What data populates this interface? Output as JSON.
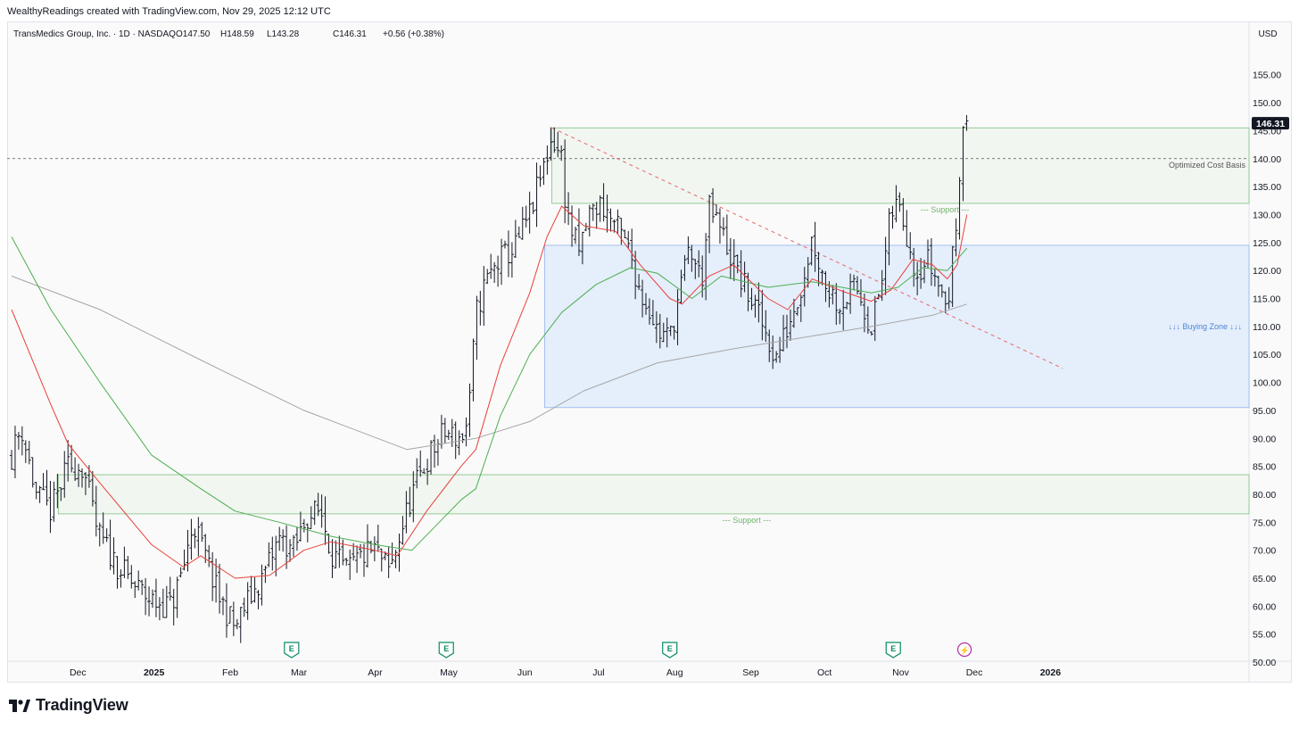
{
  "credit": "WealthyReadings created with TradingView.com, Nov 29, 2025 12:12 UTC",
  "brand": "TradingView",
  "colors": {
    "bar": "#131722",
    "ema_fast": "#e8413b",
    "ema_mid": "#4caf50",
    "ma_long": "#a6a6a6",
    "support_fill": "#eef4ee",
    "support_border": "#7fc17f",
    "buy_zone_fill": "#e5eefb",
    "buy_zone_border": "#90b4ea",
    "trendline": "#e66a6a",
    "earnings": "#0b8a65",
    "last_price_bg": "#131722"
  },
  "chart_data": {
    "type": "ohlc",
    "title": "TransMedics Group, Inc. · 1D · NASDAQ",
    "ohlc_header": {
      "open": "O147.50",
      "high": "H148.59",
      "low": "L143.28",
      "close": "C146.31",
      "change": "+0.56 (+0.38%)"
    },
    "currency": "USD",
    "last_price_label": "146.31",
    "y_ticks": [
      "155.00",
      "150.00",
      "145.00",
      "140.00",
      "135.00",
      "130.00",
      "125.00",
      "120.00",
      "115.00",
      "110.00",
      "105.00",
      "100.00",
      "95.00",
      "90.00",
      "85.00",
      "80.00",
      "75.00",
      "70.00",
      "65.00",
      "60.00",
      "55.00",
      "50.00"
    ],
    "y_tick_values": [
      155,
      150,
      145,
      140,
      135,
      130,
      125,
      120,
      115,
      110,
      105,
      100,
      95,
      90,
      85,
      80,
      75,
      70,
      65,
      60,
      55,
      50
    ],
    "x_ticks": [
      {
        "label": "Dec",
        "date": "2024-12-01",
        "bold": false
      },
      {
        "label": "2025",
        "date": "2025-01-01",
        "bold": true
      },
      {
        "label": "Feb",
        "date": "2025-02-01",
        "bold": false
      },
      {
        "label": "Mar",
        "date": "2025-03-01",
        "bold": false
      },
      {
        "label": "Apr",
        "date": "2025-04-01",
        "bold": false
      },
      {
        "label": "May",
        "date": "2025-05-01",
        "bold": false
      },
      {
        "label": "Jun",
        "date": "2025-06-01",
        "bold": false
      },
      {
        "label": "Jul",
        "date": "2025-07-01",
        "bold": false
      },
      {
        "label": "Aug",
        "date": "2025-08-01",
        "bold": false
      },
      {
        "label": "Sep",
        "date": "2025-09-01",
        "bold": false
      },
      {
        "label": "Oct",
        "date": "2025-10-01",
        "bold": false
      },
      {
        "label": "Nov",
        "date": "2025-11-01",
        "bold": false
      },
      {
        "label": "Dec",
        "date": "2025-12-01",
        "bold": false
      },
      {
        "label": "2026",
        "date": "2026-01-01",
        "bold": true
      }
    ],
    "price_path": [
      [
        "2024-11-04",
        87
      ],
      [
        "2024-11-08",
        92
      ],
      [
        "2024-11-14",
        80
      ],
      [
        "2024-11-20",
        77
      ],
      [
        "2024-11-27",
        85
      ],
      [
        "2024-12-03",
        85
      ],
      [
        "2024-12-09",
        73
      ],
      [
        "2024-12-16",
        68
      ],
      [
        "2024-12-23",
        64
      ],
      [
        "2024-12-31",
        61
      ],
      [
        "2025-01-08",
        60
      ],
      [
        "2025-01-13",
        67
      ],
      [
        "2025-01-17",
        75
      ],
      [
        "2025-01-21",
        70
      ],
      [
        "2025-01-27",
        62
      ],
      [
        "2025-02-03",
        56
      ],
      [
        "2025-02-07",
        60
      ],
      [
        "2025-02-14",
        65
      ],
      [
        "2025-02-21",
        72
      ],
      [
        "2025-02-27",
        70
      ],
      [
        "2025-03-04",
        76
      ],
      [
        "2025-03-10",
        77
      ],
      [
        "2025-03-14",
        70
      ],
      [
        "2025-03-20",
        66
      ],
      [
        "2025-03-27",
        69
      ],
      [
        "2025-04-01",
        70
      ],
      [
        "2025-04-07",
        66
      ],
      [
        "2025-04-10",
        71
      ],
      [
        "2025-04-16",
        80
      ],
      [
        "2025-04-22",
        86
      ],
      [
        "2025-04-29",
        91
      ],
      [
        "2025-05-06",
        90
      ],
      [
        "2025-05-09",
        93
      ],
      [
        "2025-05-12",
        112
      ],
      [
        "2025-05-16",
        118
      ],
      [
        "2025-05-22",
        122
      ],
      [
        "2025-05-28",
        124
      ],
      [
        "2025-06-03",
        130
      ],
      [
        "2025-06-09",
        139
      ],
      [
        "2025-06-12",
        144
      ],
      [
        "2025-06-16",
        140
      ],
      [
        "2025-06-18",
        130
      ],
      [
        "2025-06-23",
        123
      ],
      [
        "2025-06-27",
        130
      ],
      [
        "2025-07-02",
        132
      ],
      [
        "2025-07-08",
        128
      ],
      [
        "2025-07-14",
        123
      ],
      [
        "2025-07-18",
        116
      ],
      [
        "2025-07-22",
        113
      ],
      [
        "2025-07-25",
        109
      ],
      [
        "2025-07-30",
        108
      ],
      [
        "2025-08-04",
        118
      ],
      [
        "2025-08-07",
        124
      ],
      [
        "2025-08-12",
        118
      ],
      [
        "2025-08-15",
        131
      ],
      [
        "2025-08-20",
        127
      ],
      [
        "2025-08-26",
        120
      ],
      [
        "2025-09-02",
        114
      ],
      [
        "2025-09-08",
        108
      ],
      [
        "2025-09-11",
        104
      ],
      [
        "2025-09-16",
        110
      ],
      [
        "2025-09-22",
        118
      ],
      [
        "2025-09-26",
        126
      ],
      [
        "2025-10-01",
        118
      ],
      [
        "2025-10-07",
        114
      ],
      [
        "2025-10-14",
        117
      ],
      [
        "2025-10-20",
        110
      ],
      [
        "2025-10-24",
        117
      ],
      [
        "2025-10-28",
        130
      ],
      [
        "2025-10-31",
        132
      ],
      [
        "2025-11-04",
        126
      ],
      [
        "2025-11-07",
        120
      ],
      [
        "2025-11-12",
        122
      ],
      [
        "2025-11-17",
        117
      ],
      [
        "2025-11-20",
        113
      ],
      [
        "2025-11-24",
        130
      ],
      [
        "2025-11-26",
        147
      ],
      [
        "2025-11-28",
        146.3
      ]
    ],
    "ema_fast_path": [
      [
        "2024-11-04",
        113
      ],
      [
        "2024-11-20",
        96
      ],
      [
        "2024-11-27",
        89
      ],
      [
        "2024-12-10",
        82
      ],
      [
        "2024-12-31",
        71
      ],
      [
        "2025-01-13",
        67
      ],
      [
        "2025-01-20",
        69
      ],
      [
        "2025-02-03",
        65
      ],
      [
        "2025-02-17",
        65.5
      ],
      [
        "2025-03-03",
        70
      ],
      [
        "2025-03-14",
        71.5
      ],
      [
        "2025-04-01",
        70
      ],
      [
        "2025-04-10",
        69
      ],
      [
        "2025-04-22",
        77
      ],
      [
        "2025-05-06",
        85
      ],
      [
        "2025-05-12",
        88
      ],
      [
        "2025-05-22",
        103
      ],
      [
        "2025-06-03",
        116
      ],
      [
        "2025-06-10",
        126
      ],
      [
        "2025-06-16",
        131.5
      ],
      [
        "2025-06-25",
        128
      ],
      [
        "2025-07-08",
        127
      ],
      [
        "2025-07-18",
        121
      ],
      [
        "2025-07-30",
        115
      ],
      [
        "2025-08-04",
        114
      ],
      [
        "2025-08-15",
        119
      ],
      [
        "2025-08-25",
        121
      ],
      [
        "2025-09-08",
        115
      ],
      [
        "2025-09-16",
        113
      ],
      [
        "2025-09-26",
        118.5
      ],
      [
        "2025-10-07",
        116.5
      ],
      [
        "2025-10-20",
        114.5
      ],
      [
        "2025-10-28",
        116.5
      ],
      [
        "2025-11-06",
        122
      ],
      [
        "2025-11-14",
        121
      ],
      [
        "2025-11-20",
        118.5
      ],
      [
        "2025-11-24",
        121
      ],
      [
        "2025-11-28",
        130
      ]
    ],
    "ema_mid_path": [
      [
        "2024-11-04",
        126
      ],
      [
        "2024-11-20",
        113
      ],
      [
        "2024-12-10",
        100
      ],
      [
        "2024-12-31",
        87
      ],
      [
        "2025-01-20",
        81
      ],
      [
        "2025-02-03",
        77
      ],
      [
        "2025-02-21",
        75
      ],
      [
        "2025-03-14",
        72.5
      ],
      [
        "2025-04-01",
        71
      ],
      [
        "2025-04-16",
        70
      ],
      [
        "2025-05-06",
        79
      ],
      [
        "2025-05-12",
        81
      ],
      [
        "2025-05-22",
        94
      ],
      [
        "2025-06-03",
        105
      ],
      [
        "2025-06-16",
        112.5
      ],
      [
        "2025-06-30",
        117.5
      ],
      [
        "2025-07-14",
        120.5
      ],
      [
        "2025-07-25",
        119.5
      ],
      [
        "2025-08-08",
        115
      ],
      [
        "2025-08-20",
        119
      ],
      [
        "2025-09-08",
        117
      ],
      [
        "2025-09-26",
        118
      ],
      [
        "2025-10-20",
        116
      ],
      [
        "2025-10-31",
        117
      ],
      [
        "2025-11-10",
        120.5
      ],
      [
        "2025-11-20",
        120
      ],
      [
        "2025-11-28",
        124
      ]
    ],
    "ma_long_path": [
      [
        "2024-11-04",
        119
      ],
      [
        "2024-12-10",
        113
      ],
      [
        "2025-01-20",
        104
      ],
      [
        "2025-03-03",
        95
      ],
      [
        "2025-04-14",
        88
      ],
      [
        "2025-05-12",
        90
      ],
      [
        "2025-06-03",
        93
      ],
      [
        "2025-06-25",
        98.5
      ],
      [
        "2025-07-25",
        103.5
      ],
      [
        "2025-08-25",
        106
      ],
      [
        "2025-09-22",
        108
      ],
      [
        "2025-10-20",
        110
      ],
      [
        "2025-11-14",
        112
      ],
      [
        "2025-11-28",
        114
      ]
    ],
    "annotations": {
      "upper_support": {
        "label": "--- Support ---",
        "from": "2025-06-12",
        "low": 132,
        "high": 145.5
      },
      "lower_support": {
        "label": "--- Support ---",
        "from": "2024-11-23",
        "low": 76.5,
        "high": 83.5
      },
      "buying_zone": {
        "label": "↓↓↓ Buying Zone ↓↓↓",
        "from": "2025-06-09",
        "low": 95.5,
        "high": 124.5
      },
      "cost_basis": {
        "label": "Optimized Cost Basis",
        "value": 140
      },
      "trendline": {
        "from": [
          "2025-06-12",
          145.5
        ],
        "to": [
          "2026-01-06",
          102.5
        ]
      }
    },
    "events": [
      {
        "kind": "earnings",
        "label": "E",
        "date": "2025-02-26"
      },
      {
        "kind": "earnings",
        "label": "E",
        "date": "2025-04-30"
      },
      {
        "kind": "earnings",
        "label": "E",
        "date": "2025-07-30"
      },
      {
        "kind": "earnings",
        "label": "E",
        "date": "2025-10-29"
      },
      {
        "kind": "dividend",
        "label": "⚡",
        "date": "2025-11-27"
      }
    ]
  }
}
